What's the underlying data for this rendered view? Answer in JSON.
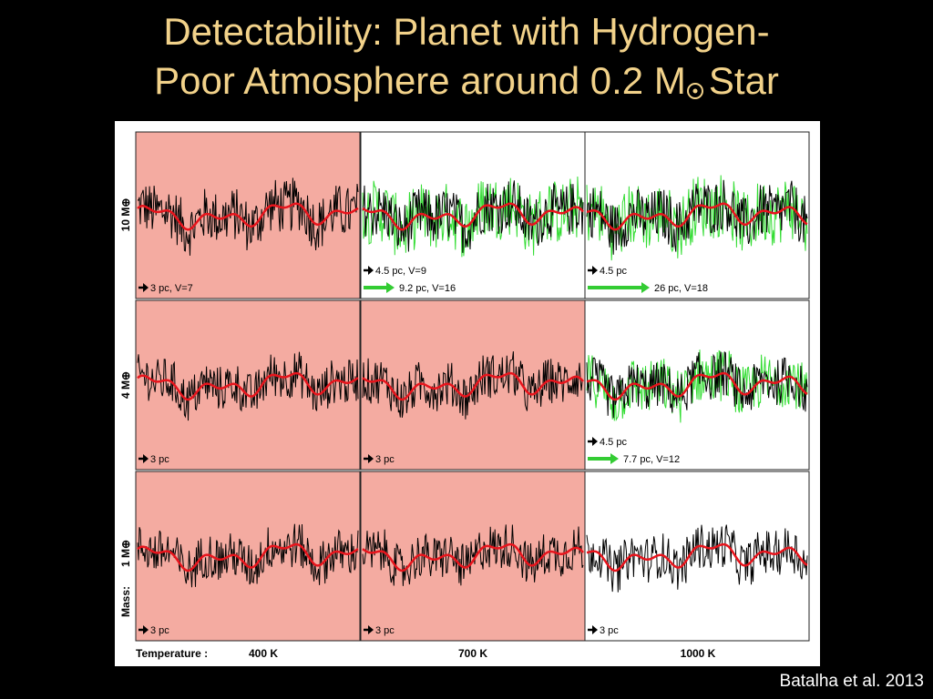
{
  "slide": {
    "title_line1": "Detectability: Planet with Hydrogen-",
    "title_line2_a": "Poor Atmosphere around 0.2 M",
    "title_line2_b": "Star",
    "credit": "Batalha et al. 2013"
  },
  "colors": {
    "background": "#000000",
    "title": "#f2d28a",
    "highlight_panel": "#f4aba1",
    "normal_panel": "#ffffff",
    "observed_spectrum": "#000000",
    "model_spectrum": "#e8141c",
    "secondary_spectrum": "#33dd33",
    "arrow_black": "#000000",
    "arrow_green": "#33cc33"
  },
  "chart_data": {
    "type": "line",
    "layout": "3x3 grid of spectra panels",
    "row_label_prefix": "Mass:",
    "rows": [
      "10 M⊕",
      "4 M⊕",
      "1 M⊕"
    ],
    "temperature_label": "Temperature :",
    "columns": [
      "400 K",
      "700 K",
      "1000 K"
    ],
    "panels": [
      {
        "row": 0,
        "col": 0,
        "highlight": true,
        "green": false,
        "annotations": [
          {
            "arrow": "black",
            "text": "3 pc, V=7"
          }
        ]
      },
      {
        "row": 0,
        "col": 1,
        "highlight": false,
        "green": true,
        "annotations": [
          {
            "arrow": "black",
            "text": "4.5 pc, V=9"
          },
          {
            "arrow": "green",
            "text": "9.2 pc, V=16"
          }
        ]
      },
      {
        "row": 0,
        "col": 2,
        "highlight": false,
        "green": true,
        "annotations": [
          {
            "arrow": "black",
            "text": "4.5 pc"
          },
          {
            "arrow": "green",
            "text": "26 pc, V=18"
          }
        ]
      },
      {
        "row": 1,
        "col": 0,
        "highlight": true,
        "green": false,
        "annotations": [
          {
            "arrow": "black",
            "text": "3 pc"
          }
        ]
      },
      {
        "row": 1,
        "col": 1,
        "highlight": true,
        "green": false,
        "annotations": [
          {
            "arrow": "black",
            "text": "3 pc"
          }
        ]
      },
      {
        "row": 1,
        "col": 2,
        "highlight": false,
        "green": true,
        "annotations": [
          {
            "arrow": "black",
            "text": "4.5 pc"
          },
          {
            "arrow": "green",
            "text": "7.7 pc, V=12"
          }
        ]
      },
      {
        "row": 2,
        "col": 0,
        "highlight": true,
        "green": false,
        "annotations": [
          {
            "arrow": "black",
            "text": "3 pc"
          }
        ]
      },
      {
        "row": 2,
        "col": 1,
        "highlight": true,
        "green": false,
        "annotations": [
          {
            "arrow": "black",
            "text": "3 pc"
          }
        ]
      },
      {
        "row": 2,
        "col": 2,
        "highlight": false,
        "green": false,
        "annotations": [
          {
            "arrow": "black",
            "text": "3 pc"
          }
        ]
      }
    ]
  }
}
